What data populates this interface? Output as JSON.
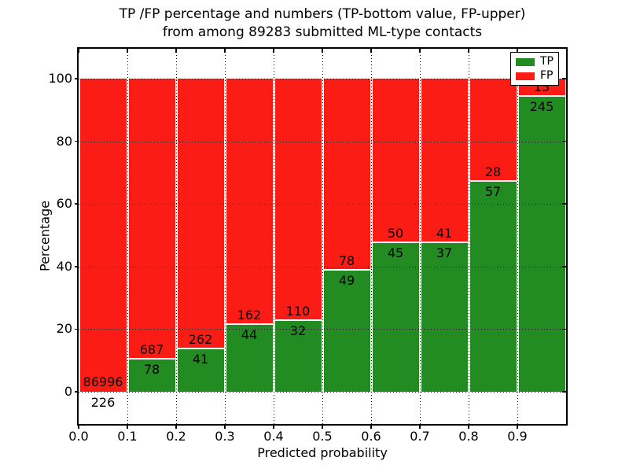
{
  "title": {
    "line1": "TP /FP percentage and numbers (TP-bottom value, FP-upper)",
    "line2": "from among 89283 submitted ML-type contacts"
  },
  "axes": {
    "xlabel": "Predicted probability",
    "ylabel": "Percentage",
    "x_tick_labels": [
      "0.0",
      "0.1",
      "0.2",
      "0.3",
      "0.4",
      "0.5",
      "0.6",
      "0.7",
      "0.8",
      "0.9"
    ],
    "y_tick_labels": [
      "0",
      "20",
      "40",
      "60",
      "80",
      "100"
    ],
    "y_tick_values": [
      0,
      20,
      40,
      60,
      80,
      100
    ]
  },
  "legend": {
    "items": [
      {
        "label": "TP",
        "color": "#228b22"
      },
      {
        "label": "FP",
        "color": "#fb1d15"
      }
    ]
  },
  "chart_data": {
    "type": "bar",
    "stacked": true,
    "normalized": "percent",
    "title": "TP /FP percentage and numbers (TP-bottom value, FP-upper) from among 89283 submitted ML-type contacts",
    "xlabel": "Predicted probability",
    "ylabel": "Percentage",
    "total_submitted": 89283,
    "categories": [
      "0.0-0.1",
      "0.1-0.2",
      "0.2-0.3",
      "0.3-0.4",
      "0.4-0.5",
      "0.5-0.6",
      "0.6-0.7",
      "0.7-0.8",
      "0.8-0.9",
      "0.9-1.0"
    ],
    "series": [
      {
        "name": "TP",
        "color": "#228b22",
        "counts": [
          226,
          78,
          41,
          44,
          32,
          49,
          45,
          37,
          57,
          245
        ]
      },
      {
        "name": "FP",
        "color": "#fb1d15",
        "counts": [
          86996,
          687,
          262,
          162,
          110,
          78,
          50,
          41,
          28,
          15
        ]
      }
    ],
    "bar_value_labels": {
      "tp": [
        "226",
        "78",
        "41",
        "44",
        "32",
        "49",
        "45",
        "37",
        "57",
        "245"
      ],
      "fp": [
        "86996",
        "687",
        "262",
        "162",
        "110",
        "78",
        "50",
        "41",
        "28",
        "15"
      ]
    },
    "xlim": [
      0.0,
      1.0
    ],
    "ylim": [
      -10,
      110
    ],
    "grid": "dotted",
    "legend_position": "upper right"
  }
}
